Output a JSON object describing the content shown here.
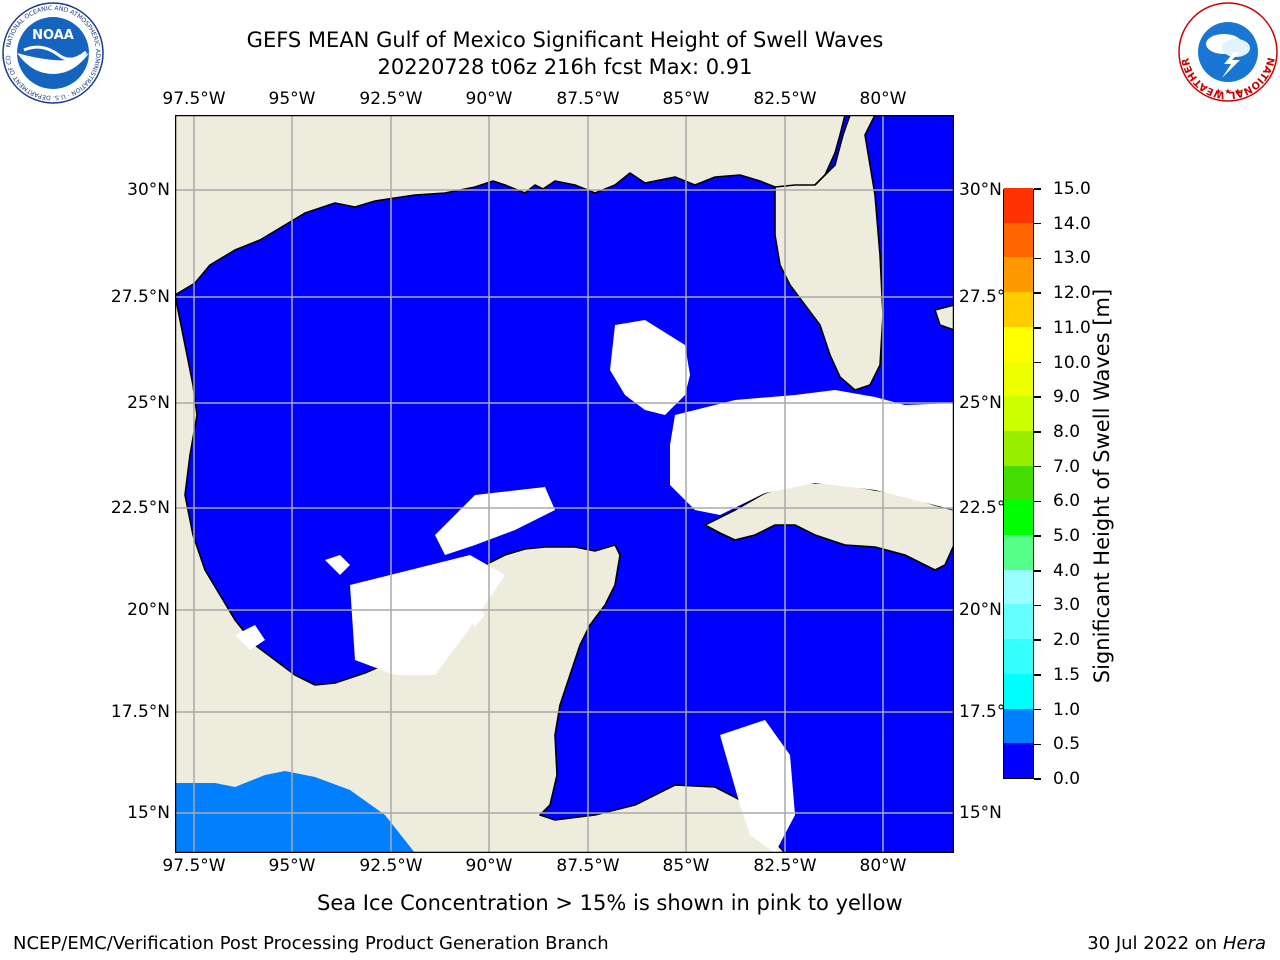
{
  "title": {
    "line1": "GEFS MEAN Gulf of Mexico Significant Height of Swell Waves",
    "line2": "20220728 t06z 216h fcst   Max: 0.91"
  },
  "map": {
    "lon_ticks": [
      "97.5°W",
      "95°W",
      "92.5°W",
      "90°W",
      "87.5°W",
      "85°W",
      "82.5°W",
      "80°W"
    ],
    "lat_ticks_left": [
      "30°N",
      "27.5°N",
      "25°N",
      "22.5°N",
      "20°N",
      "17.5°N",
      "15°N"
    ],
    "lat_ticks_right": [
      "30°N",
      "27.5°N",
      "25°N",
      "22.5°N",
      "20°N",
      "17.5°N",
      "15°N"
    ],
    "colors": {
      "land": "#eeecdc",
      "wave_low": "#0000ff",
      "wave_mid": "#0080ff",
      "grid": "#aaaaaa"
    }
  },
  "colorbar": {
    "label": "Significant Height of Swell Waves [m]",
    "ticks": [
      "0.0",
      "0.5",
      "1.0",
      "1.5",
      "2.0",
      "3.0",
      "4.0",
      "5.0",
      "6.0",
      "7.0",
      "8.0",
      "9.0",
      "10.0",
      "11.0",
      "12.0",
      "13.0",
      "14.0",
      "15.0"
    ],
    "colors": [
      "#0000ff",
      "#0080ff",
      "#00ffff",
      "#33ffff",
      "#66ffff",
      "#99ffff",
      "#55ff88",
      "#00ff00",
      "#44dd00",
      "#99ee00",
      "#ccff00",
      "#eeff00",
      "#ffff00",
      "#ffcc00",
      "#ff9900",
      "#ff6600",
      "#ff3300",
      "#ff0000"
    ]
  },
  "logos": {
    "noaa": {
      "text": "NOAA",
      "ring_text": "NATIONAL OCEANIC AND ATMOSPHERIC ADMINISTRATION · U.S. DEPARTMENT OF COMMERCE"
    },
    "nws": {
      "ring_text": "NATIONAL WEATHER SERVICE"
    }
  },
  "sea_ice_note": "Sea Ice Concentration > 15% is shown in pink to yellow",
  "footer": {
    "left": "NCEP/EMC/Verification Post Processing Product Generation Branch",
    "date": "30 Jul 2022 on ",
    "host": "Hera"
  }
}
